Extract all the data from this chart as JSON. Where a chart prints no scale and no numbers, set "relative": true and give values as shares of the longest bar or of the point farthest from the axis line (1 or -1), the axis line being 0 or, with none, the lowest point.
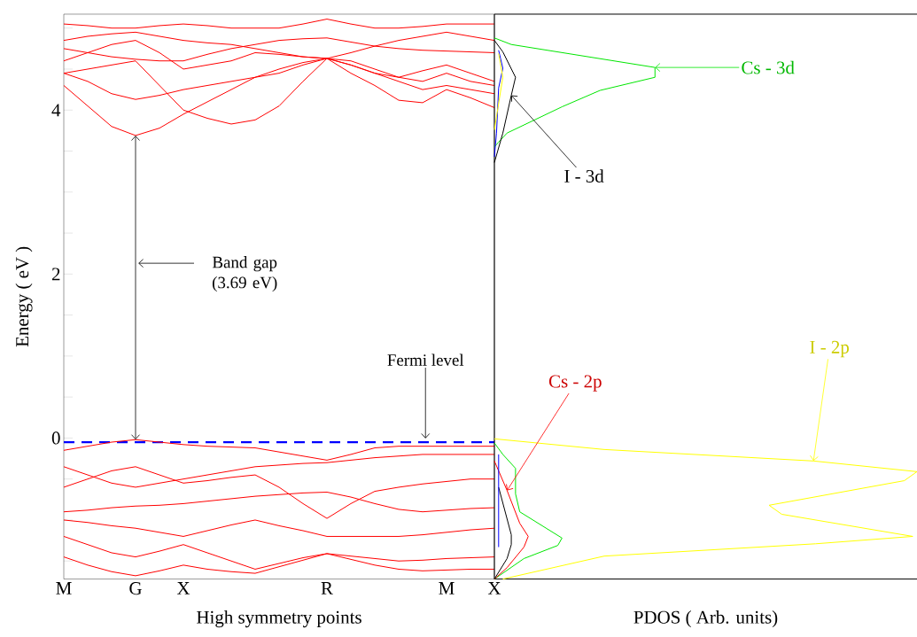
{
  "chart_data": [
    {
      "type": "line",
      "xlabel": "High symmetry points",
      "ylabel": "Energy ( eV )",
      "marker": "none",
      "line_style": "solid",
      "categories": [
        "M",
        null,
        null,
        "G",
        null,
        "X",
        null,
        null,
        null,
        null,
        null,
        "R",
        null,
        null,
        null,
        null,
        "M",
        null,
        "X"
      ],
      "ylim": [
        -1.72,
        5.17
      ],
      "yticks": [
        {
          "value": -1.5,
          "label": null
        },
        {
          "value": -1,
          "label": null
        },
        {
          "value": -0.5,
          "label": null
        },
        0,
        {
          "value": 0.5,
          "label": null
        },
        {
          "value": 1,
          "label": null
        },
        {
          "value": 1.5,
          "label": null
        },
        2,
        {
          "value": 2.5,
          "label": null
        },
        {
          "value": 3,
          "label": null
        },
        {
          "value": 3.5,
          "label": null
        },
        4,
        {
          "value": 4.5,
          "label": null
        },
        {
          "value": 5,
          "label": null
        }
      ],
      "ref_lines": [
        {
          "axis": "y",
          "value": -0.05,
          "color": "#0000ff",
          "line_style": "dashed"
        }
      ],
      "annotations": [
        "Band gap (3.69 eV)",
        {
          "text": "Fermi level",
          "y": -0.05
        }
      ],
      "series": [
        {
          "color": "#ff0000",
          "values": [
            4.3,
            4.05,
            3.8,
            3.69,
            3.78,
            3.95,
            4.1,
            4.25,
            4.4,
            4.5,
            4.58,
            4.63,
            4.45,
            4.3,
            4.12,
            4.09,
            4.25,
            4.15,
            4.03
          ]
        },
        {
          "color": "#ff0000",
          "values": [
            4.45,
            4.5,
            4.55,
            4.6,
            4.3,
            4.0,
            3.9,
            3.83,
            3.88,
            4.05,
            4.35,
            4.63,
            4.55,
            4.45,
            4.35,
            4.25,
            4.3,
            4.25,
            4.2
          ]
        },
        {
          "color": "#ff0000",
          "values": [
            4.45,
            4.35,
            4.2,
            4.13,
            4.18,
            4.25,
            4.3,
            4.35,
            4.4,
            4.45,
            4.55,
            4.63,
            4.6,
            4.5,
            4.4,
            4.35,
            4.45,
            4.35,
            4.3
          ]
        },
        {
          "color": "#ff0000",
          "values": [
            4.6,
            4.7,
            4.8,
            4.85,
            4.7,
            4.5,
            4.55,
            4.6,
            4.7,
            4.68,
            4.65,
            4.63,
            4.55,
            4.45,
            4.4,
            4.48,
            4.55,
            4.45,
            4.35
          ]
        },
        {
          "color": "#ff0000",
          "values": [
            5.05,
            5.03,
            5.0,
            5.0,
            5.03,
            5.05,
            5.03,
            5.0,
            5.0,
            5.0,
            5.05,
            5.11,
            5.05,
            5.0,
            5.0,
            5.02,
            5.05,
            5.05,
            5.05
          ]
        },
        {
          "color": "#ff0000",
          "values": [
            4.85,
            4.9,
            4.93,
            4.95,
            4.9,
            4.85,
            4.82,
            4.8,
            4.75,
            4.7,
            4.65,
            4.63,
            4.7,
            4.78,
            4.85,
            4.9,
            4.95,
            4.9,
            4.85
          ]
        },
        {
          "color": "#ff0000",
          "values": [
            4.75,
            4.7,
            4.65,
            4.62,
            4.6,
            4.6,
            4.68,
            4.75,
            4.8,
            4.85,
            4.87,
            4.88,
            4.83,
            4.78,
            4.75,
            4.73,
            4.72,
            4.71,
            4.7
          ]
        },
        {
          "color": "#ff0000",
          "values": [
            -0.15,
            -0.1,
            -0.05,
            -0.02,
            -0.05,
            -0.08,
            -0.1,
            -0.11,
            -0.12,
            -0.17,
            -0.22,
            -0.27,
            -0.2,
            -0.12,
            -0.1,
            -0.1,
            -0.1,
            -0.1,
            -0.1
          ]
        },
        {
          "color": "#ff0000",
          "values": [
            -0.35,
            -0.45,
            -0.55,
            -0.6,
            -0.55,
            -0.5,
            -0.45,
            -0.4,
            -0.35,
            -0.33,
            -0.31,
            -0.3,
            -0.27,
            -0.24,
            -0.22,
            -0.2,
            -0.2,
            -0.2,
            -0.2
          ]
        },
        {
          "color": "#ff0000",
          "values": [
            -0.6,
            -0.5,
            -0.4,
            -0.35,
            -0.45,
            -0.55,
            -0.52,
            -0.48,
            -0.45,
            -0.6,
            -0.8,
            -0.98,
            -0.8,
            -0.65,
            -0.6,
            -0.56,
            -0.53,
            -0.5,
            -0.5
          ]
        },
        {
          "color": "#ff0000",
          "values": [
            -0.9,
            -0.88,
            -0.85,
            -0.83,
            -0.82,
            -0.8,
            -0.77,
            -0.74,
            -0.71,
            -0.69,
            -0.67,
            -0.66,
            -0.72,
            -0.8,
            -0.87,
            -0.9,
            -0.88,
            -0.86,
            -0.85
          ]
        },
        {
          "color": "#ff0000",
          "values": [
            -1.0,
            -1.03,
            -1.07,
            -1.1,
            -1.15,
            -1.2,
            -1.13,
            -1.06,
            -1.0,
            -1.07,
            -1.13,
            -1.2,
            -1.2,
            -1.2,
            -1.2,
            -1.18,
            -1.15,
            -1.12,
            -1.1
          ]
        },
        {
          "color": "#ff0000",
          "values": [
            -1.2,
            -1.3,
            -1.4,
            -1.45,
            -1.38,
            -1.3,
            -1.4,
            -1.5,
            -1.6,
            -1.53,
            -1.46,
            -1.41,
            -1.44,
            -1.47,
            -1.5,
            -1.49,
            -1.47,
            -1.46,
            -1.45
          ]
        },
        {
          "color": "#ff0000",
          "values": [
            -1.45,
            -1.55,
            -1.63,
            -1.68,
            -1.62,
            -1.55,
            -1.6,
            -1.63,
            -1.65,
            -1.57,
            -1.49,
            -1.41,
            -1.48,
            -1.55,
            -1.6,
            -1.62,
            -1.61,
            -1.6,
            -1.6
          ]
        }
      ]
    },
    {
      "type": "line",
      "xlabel": "PDOS ( Arb. units)",
      "relative": true,
      "orientation": "horizontal",
      "marker": "none",
      "ylim": [
        -1.72,
        5.17
      ],
      "series": [
        {
          "name": "Cs - 3d",
          "color": "#00e600",
          "values": [
            0,
            0.04,
            0.38,
            0.38,
            0.25,
            0.16,
            0.03,
            0.01,
            0
          ],
          "x": [
            4.88,
            4.8,
            4.52,
            4.4,
            4.24,
            4.04,
            3.72,
            3.61,
            3.55
          ]
        },
        {
          "name": "I - 3d",
          "color": "#000000",
          "values": [
            0,
            0.02,
            0.05,
            0.04,
            0.02,
            0
          ],
          "x": [
            4.85,
            4.71,
            4.4,
            4.18,
            3.72,
            3.36
          ]
        },
        {
          "color": "#0000ff",
          "values": [
            0.01,
            0.02,
            0.01,
            0.005,
            0
          ],
          "x": [
            4.73,
            4.51,
            4.27,
            3.72,
            3.43
          ]
        },
        {
          "color": "#ffff00",
          "values": [
            0.01,
            0.02,
            0
          ],
          "x": [
            4.69,
            4.4,
            3.76
          ]
        },
        {
          "name": "I - 2p",
          "color": "#ffff00",
          "values": [
            0,
            0.26,
            0.755,
            1.0,
            0.97,
            0.65,
            0.68,
            0.99,
            0.76,
            0.26,
            0.02
          ],
          "x": [
            -0.01,
            -0.14,
            -0.28,
            -0.41,
            -0.52,
            -0.82,
            -0.93,
            -1.2,
            -1.29,
            -1.44,
            -1.72
          ]
        },
        {
          "color": "#00e600",
          "values": [
            0,
            0.02,
            0.05,
            0.05,
            0.06,
            0.16,
            0.15,
            0.07,
            0
          ],
          "x": [
            -0.06,
            -0.2,
            -0.37,
            -0.68,
            -0.9,
            -1.22,
            -1.31,
            -1.47,
            -1.72
          ]
        },
        {
          "name": "Cs - 2p",
          "color": "#ff0000",
          "values": [
            0,
            0.03,
            0.06,
            0.08,
            0.07,
            0.03,
            0
          ],
          "x": [
            -0.28,
            -0.64,
            -1.04,
            -1.2,
            -1.33,
            -1.58,
            -1.72
          ]
        },
        {
          "color": "#000000",
          "values": [
            0.01,
            0.04,
            0.04,
            0.03,
            0
          ],
          "x": [
            -0.6,
            -1.18,
            -1.3,
            -1.47,
            -1.72
          ]
        },
        {
          "color": "#0000ff",
          "values": [
            0.01,
            0.01
          ],
          "x": [
            -0.2,
            -1.33
          ]
        }
      ]
    }
  ]
}
